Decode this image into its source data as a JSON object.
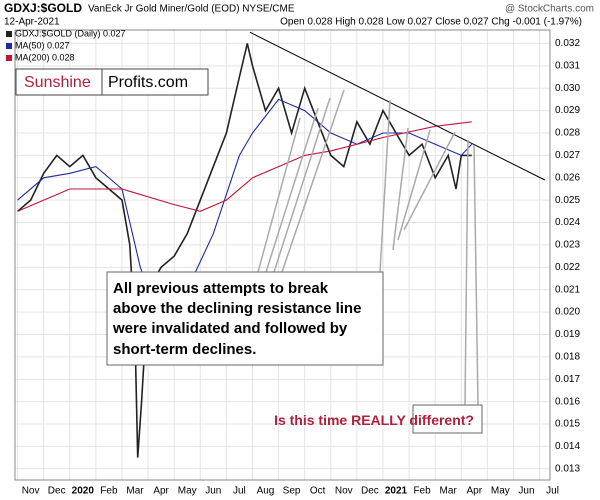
{
  "chart_data": {
    "type": "line",
    "symbol": "GDXJ:$GOLD",
    "title": "VanEck Jr Gold Miner/Gold (EOD) NYSE/CME",
    "source": "@ StockCharts.com",
    "date": "12-Apr-2021",
    "ohlc_summary": "Open 0.028 High 0.028 Low 0.027 Close 0.027 Chg -0.001 (-1.97%)",
    "logo": [
      "Sunshine",
      "Profits.com"
    ],
    "annotations": [
      "All previous attempts to break",
      "above the declining resistance line",
      "were invalidated and followed by",
      "short-term declines."
    ],
    "question": "Is this time REALLY different?",
    "grid": true,
    "ylim": [
      0.0125,
      0.0326
    ],
    "yticks": [
      0.013,
      0.014,
      0.015,
      0.016,
      0.017,
      0.018,
      0.019,
      {
        "value": 0.02,
        "label": "0.020"
      },
      0.021,
      0.022,
      0.023,
      0.024,
      0.025,
      0.026,
      0.027,
      0.028,
      0.029,
      {
        "value": 0.03,
        "label": "0.030"
      },
      0.031,
      0.032
    ],
    "xlim": [
      -0.1,
      20.4
    ],
    "xticks": [
      {
        "value": 0,
        "label": "Nov"
      },
      {
        "value": 1,
        "label": "Dec"
      },
      {
        "value": 2,
        "label": "2020"
      },
      {
        "value": 3,
        "label": "Feb"
      },
      {
        "value": 4,
        "label": "Mar"
      },
      {
        "value": 5,
        "label": "Apr"
      },
      {
        "value": 6,
        "label": "May"
      },
      {
        "value": 7,
        "label": "Jun"
      },
      {
        "value": 8,
        "label": "Jul"
      },
      {
        "value": 9,
        "label": "Aug"
      },
      {
        "value": 10,
        "label": "Sep"
      },
      {
        "value": 11,
        "label": "Oct"
      },
      {
        "value": 12,
        "label": "Nov"
      },
      {
        "value": 13,
        "label": "Dec"
      },
      {
        "value": 14,
        "label": "2021"
      },
      {
        "value": 15,
        "label": "Feb"
      },
      {
        "value": 16,
        "label": "Mar"
      },
      {
        "value": 17,
        "label": "Apr"
      },
      {
        "value": 18,
        "label": "May"
      },
      {
        "value": 19,
        "label": "Jun"
      },
      {
        "value": 20,
        "label": "Jul"
      }
    ],
    "series": [
      {
        "name": "GDXJ:$GOLD (Daily) 0.027",
        "color": "#222222",
        "x": [
          0,
          0.5,
          1,
          1.5,
          2,
          2.5,
          3,
          3.5,
          4,
          4.3,
          4.5,
          4.6,
          4.75,
          5,
          5.5,
          6,
          6.5,
          7,
          7.5,
          8,
          8.5,
          8.8,
          9,
          9.5,
          10,
          10.5,
          11,
          11.5,
          12,
          12.5,
          13,
          13.5,
          14,
          14.5,
          15,
          15.5,
          16,
          16.5,
          16.8,
          17,
          17.4
        ],
        "values": [
          0.0245,
          0.025,
          0.0262,
          0.027,
          0.0265,
          0.027,
          0.026,
          0.0255,
          0.025,
          0.023,
          0.019,
          0.0135,
          0.016,
          0.021,
          0.022,
          0.0225,
          0.0235,
          0.025,
          0.0265,
          0.028,
          0.0305,
          0.032,
          0.031,
          0.029,
          0.03,
          0.028,
          0.03,
          0.0285,
          0.027,
          0.0265,
          0.0285,
          0.0275,
          0.029,
          0.028,
          0.027,
          0.0275,
          0.026,
          0.027,
          0.0255,
          0.027,
          0.027
        ]
      },
      {
        "name": "MA(50) 0.027",
        "color": "#1f2a9c",
        "x": [
          0,
          1,
          2,
          3,
          4,
          4.7,
          5.5,
          6.5,
          7.5,
          8.5,
          9,
          10,
          11,
          12,
          13,
          14,
          15,
          16,
          17,
          17.4
        ],
        "values": [
          0.025,
          0.026,
          0.0262,
          0.0265,
          0.0255,
          0.022,
          0.0195,
          0.021,
          0.0235,
          0.027,
          0.028,
          0.0295,
          0.029,
          0.028,
          0.0275,
          0.028,
          0.028,
          0.0275,
          0.027,
          0.0275
        ]
      },
      {
        "name": "MA(200) 0.028",
        "color": "#c0143c",
        "x": [
          0,
          2,
          4,
          6,
          7,
          8,
          9,
          10,
          11,
          12,
          14,
          16,
          17.4
        ],
        "values": [
          0.0245,
          0.0255,
          0.0255,
          0.0248,
          0.0245,
          0.025,
          0.026,
          0.0265,
          0.027,
          0.0272,
          0.0278,
          0.0283,
          0.0285
        ]
      }
    ],
    "resistance": {
      "color": "#000000",
      "x": [
        8.9,
        20.2
      ],
      "values": [
        0.0325,
        0.0259
      ]
    }
  }
}
